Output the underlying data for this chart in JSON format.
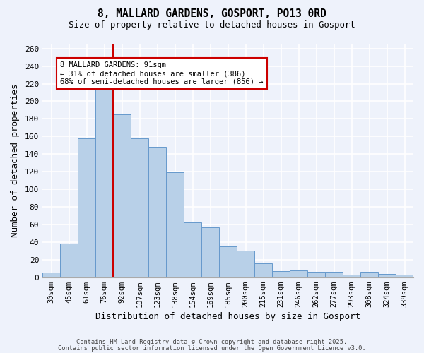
{
  "title": "8, MALLARD GARDENS, GOSPORT, PO13 0RD",
  "subtitle": "Size of property relative to detached houses in Gosport",
  "xlabel": "Distribution of detached houses by size in Gosport",
  "ylabel": "Number of detached properties",
  "categories": [
    "30sqm",
    "45sqm",
    "61sqm",
    "76sqm",
    "92sqm",
    "107sqm",
    "123sqm",
    "138sqm",
    "154sqm",
    "169sqm",
    "185sqm",
    "200sqm",
    "215sqm",
    "231sqm",
    "246sqm",
    "262sqm",
    "277sqm",
    "293sqm",
    "308sqm",
    "324sqm",
    "339sqm"
  ],
  "values": [
    5,
    38,
    158,
    218,
    185,
    158,
    148,
    119,
    62,
    57,
    35,
    30,
    16,
    7,
    8,
    6,
    6,
    3,
    6,
    4,
    3
  ],
  "bar_color": "#b8d0e8",
  "bar_edge_color": "#6699cc",
  "background_color": "#eef2fb",
  "grid_color": "#ffffff",
  "vline_x_index": 4,
  "vline_color": "#cc0000",
  "annotation_text": "8 MALLARD GARDENS: 91sqm\n← 31% of detached houses are smaller (386)\n68% of semi-detached houses are larger (856) →",
  "annotation_box_color": "#ffffff",
  "annotation_box_edge": "#cc0000",
  "footer1": "Contains HM Land Registry data © Crown copyright and database right 2025.",
  "footer2": "Contains public sector information licensed under the Open Government Licence v3.0.",
  "ylim": [
    0,
    265
  ],
  "yticks": [
    0,
    20,
    40,
    60,
    80,
    100,
    120,
    140,
    160,
    180,
    200,
    220,
    240,
    260
  ]
}
